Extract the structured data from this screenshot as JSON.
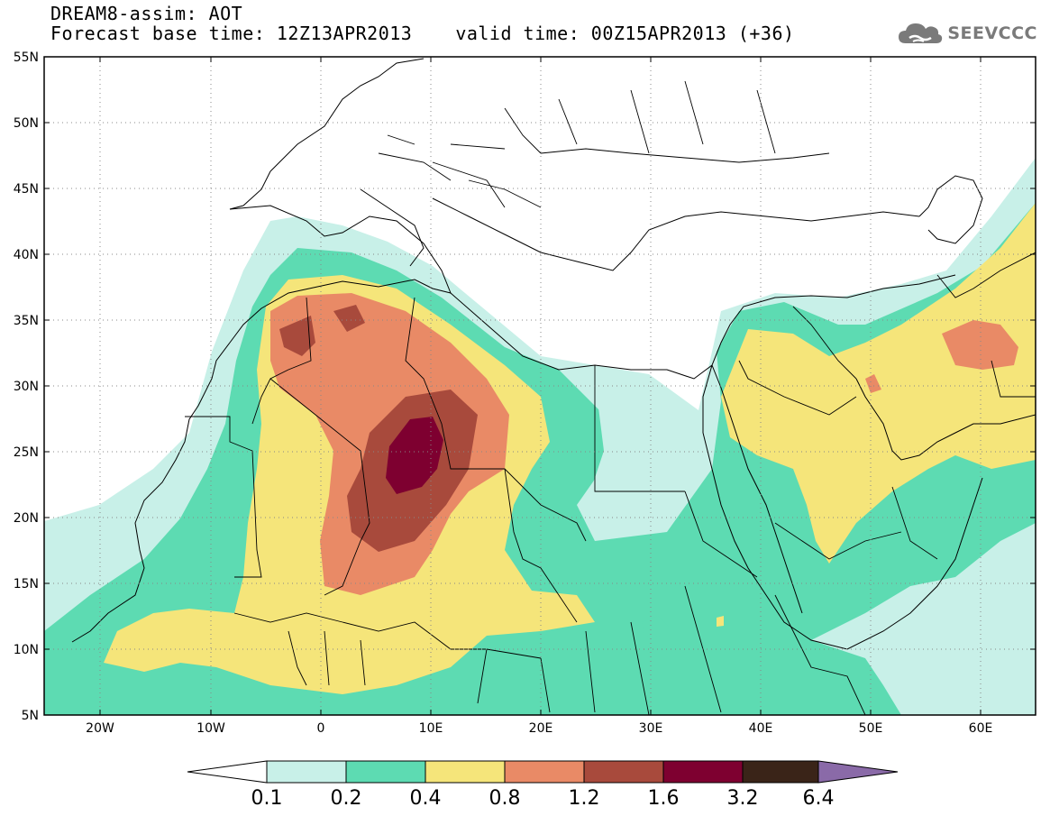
{
  "title": {
    "line1": "DREAM8-assim: AOT",
    "base_time": "Forecast base time: 12Z13APR2013",
    "valid_time": "valid time: 00Z15APR2013 (+36)"
  },
  "logo": {
    "text": "SEEVCCC",
    "icon": "cloud-logo-icon",
    "color": "#7a7a7a"
  },
  "axes": {
    "lat_labels": [
      "55N",
      "50N",
      "45N",
      "40N",
      "35N",
      "30N",
      "25N",
      "20N",
      "15N",
      "10N",
      "5N"
    ],
    "lon_labels": [
      "20W",
      "10W",
      "0",
      "10E",
      "20E",
      "30E",
      "40E",
      "50E",
      "60E"
    ],
    "lon_range": [
      -25,
      65
    ],
    "lat_range": [
      5,
      55
    ],
    "grid": "dotted"
  },
  "colorbar": {
    "labels": [
      "0.1",
      "0.2",
      "0.4",
      "0.8",
      "1.2",
      "1.6",
      "3.2",
      "6.4"
    ],
    "colors": [
      "#ffffff",
      "#c8f0e8",
      "#5ddbb2",
      "#f5e57a",
      "#e98a66",
      "#a84a3c",
      "#7e0030",
      "#3a2418",
      "#8a6aa8"
    ]
  }
}
